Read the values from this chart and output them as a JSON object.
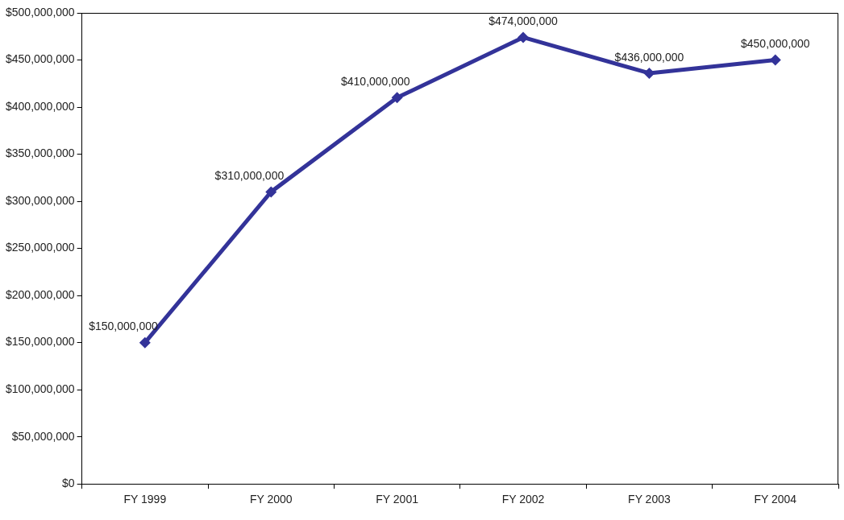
{
  "chart_data": {
    "type": "line",
    "categories": [
      "FY 1999",
      "FY 2000",
      "FY 2001",
      "FY 2002",
      "FY 2003",
      "FY 2004"
    ],
    "series": [
      {
        "color": "#333399",
        "values": [
          150000000,
          310000000,
          410000000,
          474000000,
          436000000,
          450000000
        ],
        "value_labels": [
          "$150,000,000",
          "$310,000,000",
          "$410,000,000",
          "$474,000,000",
          "$436,000,000",
          "$450,000,000"
        ]
      }
    ],
    "ylim": [
      0,
      500000000
    ],
    "yticks": [
      {
        "value": 0,
        "label": "$0"
      },
      {
        "value": 50000000,
        "label": "$50,000,000"
      },
      {
        "value": 100000000,
        "label": "$100,000,000"
      },
      {
        "value": 150000000,
        "label": "$150,000,000"
      },
      {
        "value": 200000000,
        "label": "$200,000,000"
      },
      {
        "value": 250000000,
        "label": "$250,000,000"
      },
      {
        "value": 300000000,
        "label": "$300,000,000"
      },
      {
        "value": 350000000,
        "label": "$350,000,000"
      },
      {
        "value": 400000000,
        "label": "$400,000,000"
      },
      {
        "value": 450000000,
        "label": "$450,000,000"
      },
      {
        "value": 500000000,
        "label": "$500,000,000"
      }
    ],
    "grid": false,
    "legend": false,
    "marker": "diamond",
    "line_style": "solid"
  }
}
